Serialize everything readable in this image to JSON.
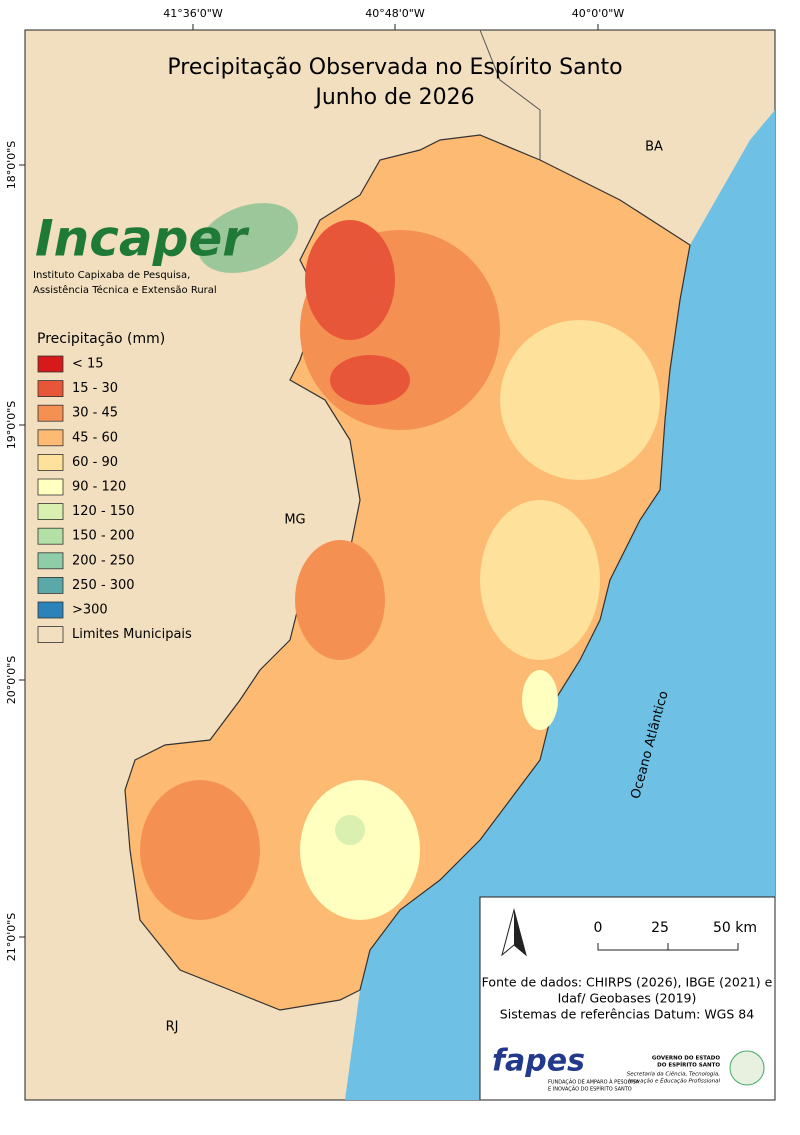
{
  "title": [
    "Precipitação Observada no Espírito Santo",
    "Junho de 2026"
  ],
  "coordinates": {
    "longitude": [
      "41°36'0\"W",
      "40°48'0\"W",
      "40°0'0\"W"
    ],
    "latitude": [
      "18°0'0\"S",
      "19°0'0\"S",
      "20°0'0\"S",
      "21°0'0\"S"
    ]
  },
  "logo": {
    "name": "Incaper",
    "subtitle": [
      "Instituto Capixaba de Pesquisa,",
      "Assistência Técnica e Extensão Rural"
    ]
  },
  "legend": {
    "title": "Precipitação (mm)",
    "items": [
      {
        "label": "< 15",
        "color": "#d7191c"
      },
      {
        "label": "15 - 30",
        "color": "#e8563a"
      },
      {
        "label": "30 - 45",
        "color": "#f59053"
      },
      {
        "label": "45 - 60",
        "color": "#fdba73"
      },
      {
        "label": "60 - 90",
        "color": "#fee19a"
      },
      {
        "label": "90 - 120",
        "color": "#ffffc0"
      },
      {
        "label": "120 - 150",
        "color": "#d9f0b0"
      },
      {
        "label": "150 - 200",
        "color": "#b5e0a5"
      },
      {
        "label": "200 - 250",
        "color": "#8fcca8"
      },
      {
        "label": "250 - 300",
        "color": "#5ba8a8"
      },
      {
        "label": ">300",
        "color": "#2b83ba"
      },
      {
        "label": "Limites Municipais",
        "color": "#f2dfc0"
      }
    ]
  },
  "places": {
    "bahia": "BA",
    "minas": "MG",
    "rio": "RJ",
    "ocean": "Oceano Atlântico"
  },
  "scale": [
    "0",
    "25",
    "50 km"
  ],
  "sources": [
    "Fonte de dados: CHIRPS (2026), IBGE (2021) e",
    "Idaf/ Geobases (2019)",
    "Sistemas de referências Datum: WGS 84"
  ],
  "fapes": {
    "name": "fapes",
    "subtitle": [
      "FUNDAÇÃO DE AMPARO À PESQUISA",
      "E INOVAÇÃO DO ESPÍRITO SANTO"
    ]
  },
  "government": {
    "title": [
      "GOVERNO DO ESTADO",
      "DO ESPÍRITO SANTO"
    ],
    "subtitle": [
      "Secretaria da Ciência, Tecnologia,",
      "Inovação e Educação Profissional"
    ]
  }
}
